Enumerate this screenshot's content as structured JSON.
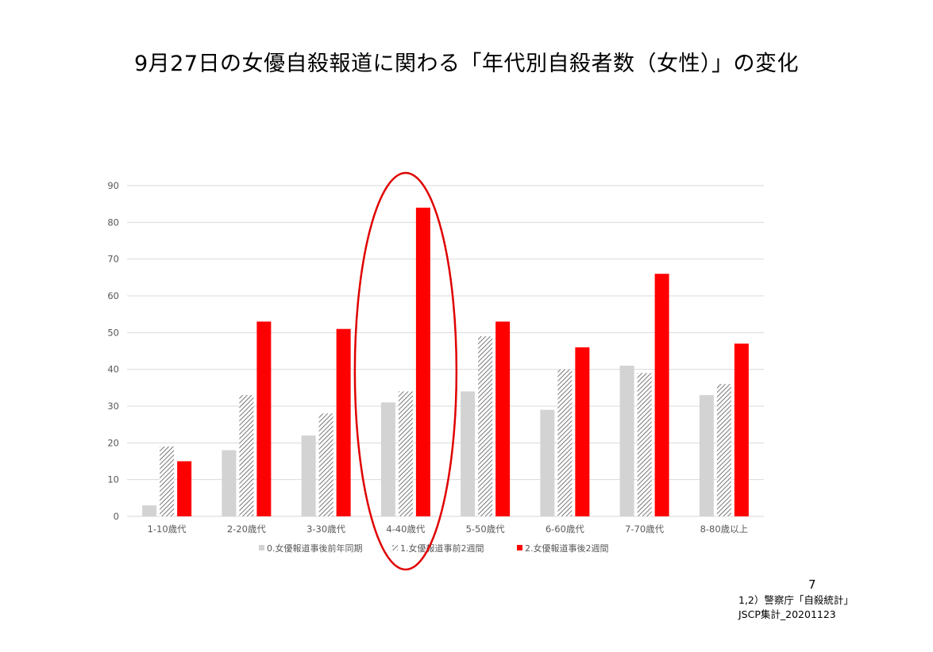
{
  "title": "9月27日の女優自殺報道に関わる「年代別自殺者数（女性）」の変化",
  "page_number": "7",
  "source_lines": [
    "1,2）警察庁「自殺統計」",
    "JSCP集計_20201123"
  ],
  "colors": {
    "series0": "#d3d3d3",
    "series1_hatch": "#555555",
    "series2": "#ff0000",
    "highlight_ellipse": "#e00000",
    "grid": "#d9d9d9",
    "axis_text": "#595959"
  },
  "chart_data": {
    "type": "bar",
    "title": "9月27日の女優自殺報道に関わる「年代別自殺者数（女性）」の変化",
    "categories": [
      "1-10歳代",
      "2-20歳代",
      "3-30歳代",
      "4-40歳代",
      "5-50歳代",
      "6-60歳代",
      "7-70歳代",
      "8-80歳以上"
    ],
    "series": [
      {
        "name": "0.女優報道事後前年同期",
        "values": [
          3,
          18,
          22,
          31,
          34,
          29,
          41,
          33
        ],
        "fill": "solid-gray"
      },
      {
        "name": "1.女優報道事前2週間",
        "values": [
          19,
          33,
          28,
          34,
          49,
          40,
          39,
          36
        ],
        "fill": "hatched"
      },
      {
        "name": "2.女優報道事後2週間",
        "values": [
          15,
          53,
          51,
          84,
          53,
          46,
          66,
          47
        ],
        "fill": "solid-red"
      }
    ],
    "ylim": [
      0,
      90
    ],
    "yticks": [
      0,
      10,
      20,
      30,
      40,
      50,
      60,
      70,
      80,
      90
    ],
    "grid": true,
    "legend_position": "bottom",
    "highlight": {
      "category": "4-40歳代",
      "shape": "ellipse"
    }
  }
}
